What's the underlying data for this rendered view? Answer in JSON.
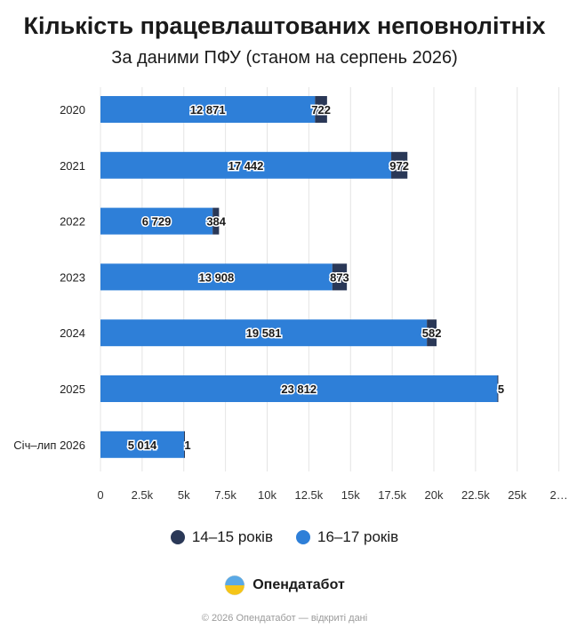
{
  "title": "Кількість працевлаштованих неповнолітніх",
  "subtitle": "За даними ПФУ (станом на серпень 2026)",
  "legend": [
    {
      "label": "14–15 років",
      "color": "#2a3857"
    },
    {
      "label": "16–17 років",
      "color": "#2e7fd8"
    }
  ],
  "brand": {
    "name": "Опендатабот"
  },
  "footer": "© 2026 Опендатабот — відкриті дані",
  "chart_data": {
    "type": "bar",
    "orientation": "horizontal",
    "stacked": true,
    "categories": [
      "2020",
      "2021",
      "2022",
      "2023",
      "2024",
      "2025",
      "Січ–лип 2026"
    ],
    "series": [
      {
        "name": "16–17 років",
        "color": "#2e7fd8",
        "values": [
          12871,
          17442,
          6729,
          13908,
          19581,
          23812,
          5014
        ],
        "labels": [
          "12 871",
          "17 442",
          "6 729",
          "13 908",
          "19 581",
          "23 812",
          "5 014"
        ]
      },
      {
        "name": "14–15 років",
        "color": "#2a3857",
        "values": [
          722,
          972,
          384,
          873,
          582,
          5,
          1
        ],
        "labels": [
          "722",
          "972",
          "384",
          "873",
          "582",
          "5",
          "1"
        ]
      }
    ],
    "x_ticks": [
      "0",
      "2.5k",
      "5k",
      "7.5k",
      "10k",
      "12.5k",
      "15k",
      "17.5k",
      "20k",
      "22.5k",
      "25k",
      "2…"
    ],
    "xlim": [
      0,
      27500
    ],
    "grid": true
  }
}
